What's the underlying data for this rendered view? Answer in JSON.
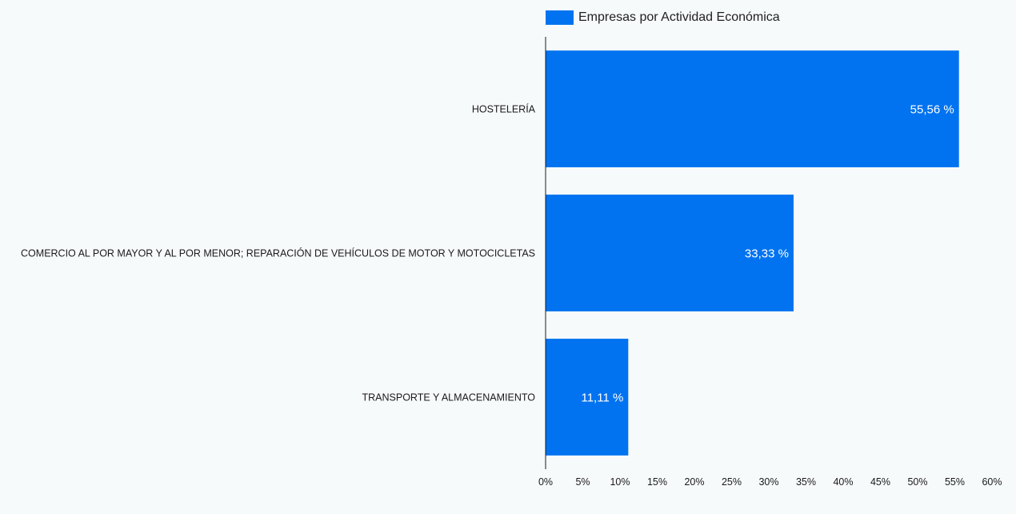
{
  "chart_data": {
    "type": "bar",
    "orientation": "horizontal",
    "categories": [
      "HOSTELERÍA",
      "COMERCIO AL POR MAYOR Y AL POR MENOR; REPARACIÓN DE VEHÍCULOS DE MOTOR Y MOTOCICLETAS",
      "TRANSPORTE Y ALMACENAMIENTO"
    ],
    "series": [
      {
        "name": "Empresas por Actividad Económica",
        "values": [
          55.56,
          33.33,
          11.11
        ],
        "labels": [
          "55,56 %",
          "33,33 %",
          "11,11 %"
        ],
        "color": "#0173f0"
      }
    ],
    "xlim": [
      0,
      60
    ],
    "xticks": [
      "0%",
      "5%",
      "10%",
      "15%",
      "20%",
      "25%",
      "30%",
      "35%",
      "40%",
      "45%",
      "50%",
      "55%",
      "60%"
    ],
    "grid": false,
    "legend": "top"
  }
}
